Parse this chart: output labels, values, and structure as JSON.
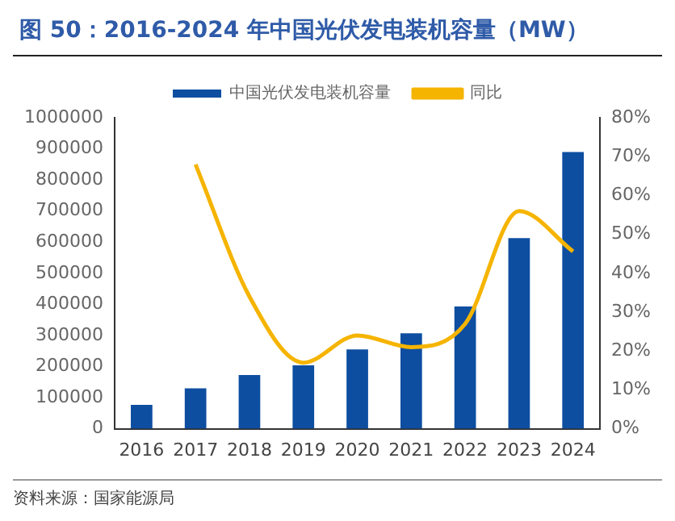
{
  "chart_data": {
    "type": "bar",
    "title": "图 50：2016-2024 年中国光伏发电装机容量（MW）",
    "categories": [
      "2016",
      "2017",
      "2018",
      "2019",
      "2020",
      "2021",
      "2022",
      "2023",
      "2024"
    ],
    "series": [
      {
        "name": "中国光伏发电装机容量",
        "color": "#0d4ea0",
        "values": [
          77000,
          130000,
          173000,
          204000,
          255000,
          307000,
          393000,
          613000,
          890000
        ]
      },
      {
        "name": "同比",
        "type": "line",
        "axis": "y2",
        "color": "#f5b400",
        "values": [
          null,
          68,
          34,
          17,
          24,
          21,
          27,
          56,
          45.6
        ]
      }
    ],
    "ylim": [
      0,
      1000000
    ],
    "yticks": [
      0,
      100000,
      200000,
      300000,
      400000,
      500000,
      600000,
      700000,
      800000,
      900000,
      1000000
    ],
    "y2lim": [
      0,
      80
    ],
    "y2ticks": [
      {
        "value": 0,
        "label": "0%"
      },
      {
        "value": 10,
        "label": "10%"
      },
      {
        "value": 20,
        "label": "20%"
      },
      {
        "value": 30,
        "label": "30%"
      },
      {
        "value": 40,
        "label": "40%"
      },
      {
        "value": 50,
        "label": "50%"
      },
      {
        "value": 60,
        "label": "60%"
      },
      {
        "value": 70,
        "label": "70%"
      },
      {
        "value": 80,
        "label": "80%"
      }
    ],
    "grid": false,
    "legend": "top",
    "marker": "none",
    "annotations": [
      "资料来源：国家能源局"
    ]
  }
}
